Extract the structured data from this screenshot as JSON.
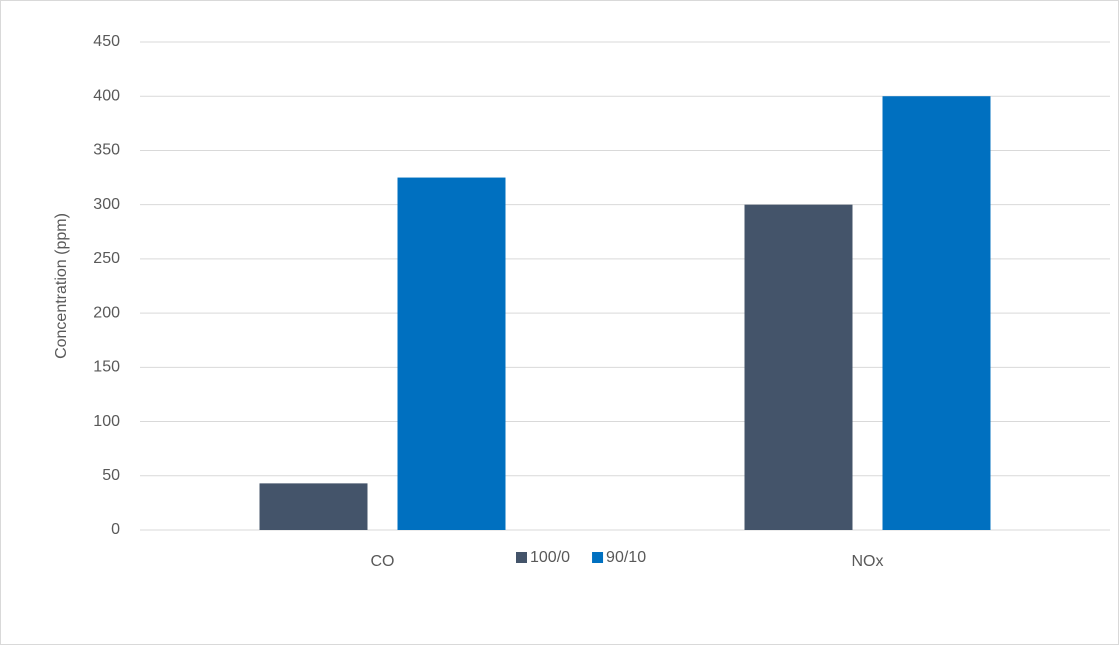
{
  "chart_data": {
    "type": "bar",
    "y_label": "Concentration (ppm)",
    "categories": [
      "CO",
      "NOx"
    ],
    "series": [
      {
        "name": "100/0",
        "color": "#44546a",
        "values": [
          43,
          300
        ]
      },
      {
        "name": "90/10",
        "color": "#0070c0",
        "values": [
          325,
          400
        ]
      }
    ],
    "ylim": [
      0,
      450
    ],
    "yticks": [
      0,
      50,
      100,
      150,
      200,
      250,
      300,
      350,
      400,
      450
    ],
    "grid": true,
    "legend": "bottom"
  }
}
